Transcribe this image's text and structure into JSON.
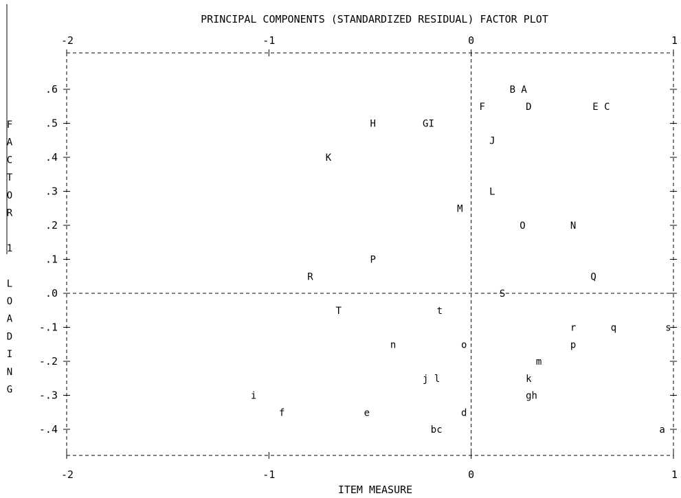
{
  "chart_data": {
    "type": "scatter",
    "title": "PRINCIPAL COMPONENTS (STANDARDIZED RESIDUAL) FACTOR PLOT",
    "xlabel": "ITEM MEASURE",
    "ylabel": "FACTOR 1 LOADING",
    "xlim": [
      -2,
      1
    ],
    "ylim": [
      -0.45,
      0.65
    ],
    "x_ticks": [
      "-2",
      "-1",
      "0",
      "1"
    ],
    "y_ticks": [
      ".6",
      ".5",
      ".4",
      ".3",
      ".2",
      ".1",
      ".0",
      "-.1",
      "-.2",
      "-.3",
      "-.4"
    ],
    "grid": false,
    "points": [
      {
        "label": "B A",
        "x": 0.19,
        "y": 0.6
      },
      {
        "label": "F",
        "x": 0.04,
        "y": 0.55
      },
      {
        "label": "D",
        "x": 0.27,
        "y": 0.55
      },
      {
        "label": "E C",
        "x": 0.6,
        "y": 0.55
      },
      {
        "label": "H",
        "x": -0.5,
        "y": 0.5
      },
      {
        "label": "GI",
        "x": -0.24,
        "y": 0.5
      },
      {
        "label": "J",
        "x": 0.09,
        "y": 0.45
      },
      {
        "label": "K",
        "x": -0.72,
        "y": 0.4
      },
      {
        "label": "L",
        "x": 0.09,
        "y": 0.3
      },
      {
        "label": "M",
        "x": -0.07,
        "y": 0.25
      },
      {
        "label": "O",
        "x": 0.24,
        "y": 0.2
      },
      {
        "label": "N",
        "x": 0.49,
        "y": 0.2
      },
      {
        "label": "P",
        "x": -0.5,
        "y": 0.1
      },
      {
        "label": "R",
        "x": -0.81,
        "y": 0.05
      },
      {
        "label": "Q",
        "x": 0.59,
        "y": 0.05
      },
      {
        "label": "S",
        "x": 0.14,
        "y": 0.0
      },
      {
        "label": "T",
        "x": -0.67,
        "y": -0.05
      },
      {
        "label": "t",
        "x": -0.17,
        "y": -0.05
      },
      {
        "label": "r",
        "x": 0.49,
        "y": -0.1
      },
      {
        "label": "q",
        "x": 0.69,
        "y": -0.1
      },
      {
        "label": "s",
        "x": 0.96,
        "y": -0.1
      },
      {
        "label": "n",
        "x": -0.4,
        "y": -0.15
      },
      {
        "label": "o",
        "x": -0.05,
        "y": -0.15
      },
      {
        "label": "p",
        "x": 0.49,
        "y": -0.15
      },
      {
        "label": "m",
        "x": 0.32,
        "y": -0.2
      },
      {
        "label": "j l",
        "x": -0.24,
        "y": -0.25
      },
      {
        "label": "k",
        "x": 0.27,
        "y": -0.25
      },
      {
        "label": "i",
        "x": -1.09,
        "y": -0.3
      },
      {
        "label": "gh",
        "x": 0.27,
        "y": -0.3
      },
      {
        "label": "f",
        "x": -0.95,
        "y": -0.35
      },
      {
        "label": "e",
        "x": -0.53,
        "y": -0.35
      },
      {
        "label": "d",
        "x": -0.05,
        "y": -0.35
      },
      {
        "label": "bc",
        "x": -0.2,
        "y": -0.4
      },
      {
        "label": "a",
        "x": 0.93,
        "y": -0.4
      }
    ]
  }
}
